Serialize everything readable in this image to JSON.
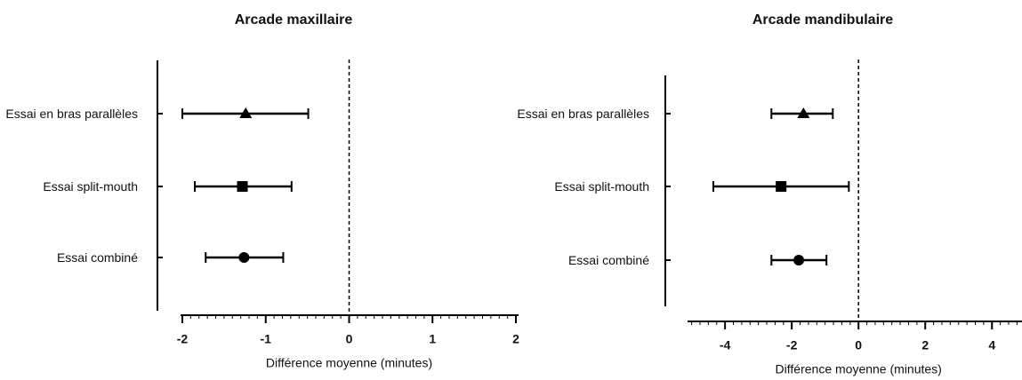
{
  "chart_data": [
    {
      "type": "forest",
      "title": "Arcade maxillaire",
      "xlabel": "Différence moyenne (minutes)",
      "categories": [
        "Essai en bras parallèles",
        "Essai split-mouth",
        "Essai combiné"
      ],
      "markers": [
        "triangle",
        "square",
        "circle"
      ],
      "values": [
        -1.24,
        -1.28,
        -1.26
      ],
      "lower": [
        -2.0,
        -1.85,
        -1.72
      ],
      "upper": [
        -0.49,
        -0.69,
        -0.79
      ],
      "xlim": [
        -2,
        2
      ],
      "xticks": [
        -2,
        -1,
        0,
        1,
        2
      ],
      "minor_tick_step": 0.1,
      "refline": 0,
      "color": "#000000"
    },
    {
      "type": "forest",
      "title": "Arcade mandibulaire",
      "xlabel": "Différence moyenne (minutes)",
      "categories": [
        "Essai en bras parallèles",
        "Essai split-mouth",
        "Essai combiné"
      ],
      "markers": [
        "triangle",
        "square",
        "circle"
      ],
      "values": [
        -1.65,
        -2.32,
        -1.79
      ],
      "lower": [
        -2.61,
        -4.35,
        -2.61
      ],
      "upper": [
        -0.77,
        -0.29,
        -0.96
      ],
      "xlim": [
        -5.07,
        4.9
      ],
      "xticks": [
        -4,
        -2,
        0,
        2,
        4
      ],
      "minor_tick_step": 0.25,
      "refline": 0,
      "color": "#000000"
    }
  ]
}
